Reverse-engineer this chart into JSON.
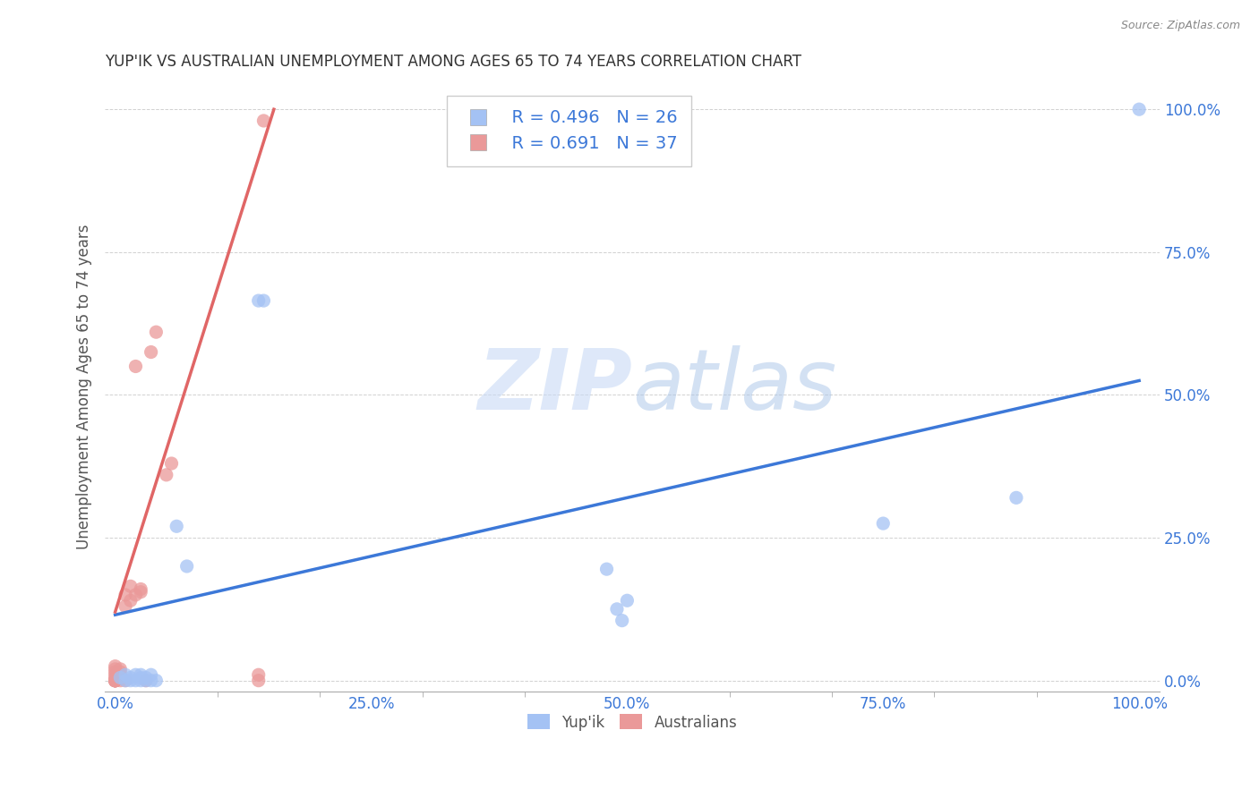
{
  "title": "YUP'IK VS AUSTRALIAN UNEMPLOYMENT AMONG AGES 65 TO 74 YEARS CORRELATION CHART",
  "source": "Source: ZipAtlas.com",
  "ylabel_label": "Unemployment Among Ages 65 to 74 years",
  "xlim": [
    -0.01,
    1.02
  ],
  "ylim": [
    -0.02,
    1.05
  ],
  "xticks": [
    0.0,
    0.25,
    0.5,
    0.75,
    1.0
  ],
  "xticklabels": [
    "0.0%",
    "25.0%",
    "50.0%",
    "75.0%",
    "100.0%"
  ],
  "yticks": [
    0.0,
    0.25,
    0.5,
    0.75,
    1.0
  ],
  "yticklabels": [
    "0.0%",
    "25.0%",
    "50.0%",
    "75.0%",
    "100.0%"
  ],
  "background_color": "#ffffff",
  "watermark_zip": "ZIP",
  "watermark_atlas": "atlas",
  "legend_r_blue": "R = 0.496",
  "legend_n_blue": "N = 26",
  "legend_r_pink": "R = 0.691",
  "legend_n_pink": "N = 37",
  "blue_color": "#a4c2f4",
  "pink_color": "#ea9999",
  "blue_line_color": "#3c78d8",
  "pink_line_color": "#e06666",
  "tick_color": "#3c78d8",
  "dot_size": 120,
  "blue_scatter_x": [
    0.005,
    0.01,
    0.01,
    0.015,
    0.015,
    0.02,
    0.02,
    0.025,
    0.025,
    0.025,
    0.03,
    0.03,
    0.035,
    0.035,
    0.04,
    0.06,
    0.07,
    0.14,
    0.145,
    0.48,
    0.49,
    0.495,
    0.5,
    0.75,
    0.88,
    1.0
  ],
  "blue_scatter_y": [
    0.005,
    0.0,
    0.01,
    0.0,
    0.005,
    0.0,
    0.01,
    0.0,
    0.005,
    0.01,
    0.0,
    0.005,
    0.0,
    0.01,
    0.0,
    0.27,
    0.2,
    0.665,
    0.665,
    0.195,
    0.125,
    0.105,
    0.14,
    0.275,
    0.32,
    1.0
  ],
  "pink_scatter_x": [
    0.0,
    0.0,
    0.0,
    0.0,
    0.0,
    0.0,
    0.0,
    0.0,
    0.0,
    0.0,
    0.0,
    0.0,
    0.0,
    0.0,
    0.0,
    0.005,
    0.005,
    0.005,
    0.005,
    0.005,
    0.01,
    0.01,
    0.01,
    0.015,
    0.015,
    0.02,
    0.02,
    0.025,
    0.025,
    0.03,
    0.035,
    0.04,
    0.05,
    0.055,
    0.14,
    0.14,
    0.145
  ],
  "pink_scatter_y": [
    0.0,
    0.0,
    0.0,
    0.0,
    0.0,
    0.0,
    0.0,
    0.0,
    0.0,
    0.0,
    0.005,
    0.01,
    0.015,
    0.02,
    0.025,
    0.0,
    0.005,
    0.01,
    0.015,
    0.02,
    0.0,
    0.13,
    0.15,
    0.14,
    0.165,
    0.15,
    0.55,
    0.155,
    0.16,
    0.0,
    0.575,
    0.61,
    0.36,
    0.38,
    0.0,
    0.01,
    0.98
  ],
  "blue_line_x": [
    0.0,
    1.0
  ],
  "blue_line_y": [
    0.115,
    0.525
  ],
  "pink_line_x": [
    0.0,
    0.155
  ],
  "pink_line_y": [
    0.12,
    1.0
  ]
}
